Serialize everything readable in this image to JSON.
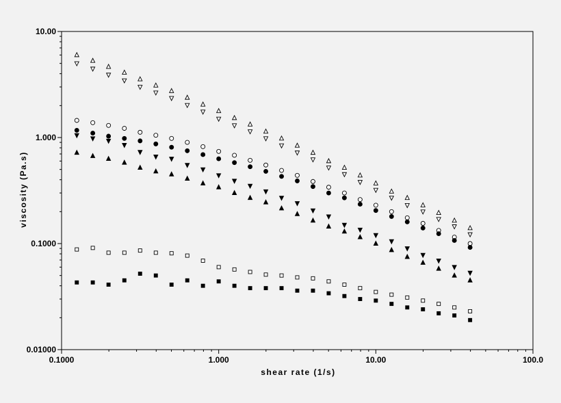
{
  "chart_data": {
    "type": "scatter",
    "title": "",
    "xlabel": "shear rate (1/s)",
    "ylabel": "viscosity (Pa.s)",
    "xscale": "log",
    "yscale": "log",
    "xlim": [
      0.1,
      100
    ],
    "ylim": [
      0.01,
      10
    ],
    "xticks": [
      "0.1000",
      "1.000",
      "10.00",
      "100.0"
    ],
    "yticks": [
      "0.01000",
      "0.1000",
      "1.000",
      "10.00"
    ],
    "grid": false,
    "legend": "none",
    "x": [
      0.125,
      0.158,
      0.199,
      0.251,
      0.316,
      0.398,
      0.501,
      0.631,
      0.794,
      1.0,
      1.259,
      1.585,
      1.995,
      2.512,
      3.162,
      3.981,
      5.012,
      6.31,
      7.943,
      10.0,
      12.59,
      15.85,
      19.95,
      25.12,
      31.62,
      39.81
    ],
    "series": [
      {
        "marker": "triangle-up-open",
        "values": [
          6.0,
          5.3,
          4.65,
          4.1,
          3.55,
          3.1,
          2.75,
          2.38,
          2.05,
          1.78,
          1.53,
          1.33,
          1.14,
          0.98,
          0.84,
          0.72,
          0.6,
          0.52,
          0.44,
          0.37,
          0.31,
          0.27,
          0.23,
          0.195,
          0.165,
          0.14
        ]
      },
      {
        "marker": "triangle-down-open",
        "values": [
          5.0,
          4.45,
          3.9,
          3.45,
          3.0,
          2.65,
          2.35,
          2.02,
          1.75,
          1.5,
          1.3,
          1.14,
          0.98,
          0.84,
          0.72,
          0.62,
          0.52,
          0.45,
          0.38,
          0.32,
          0.27,
          0.23,
          0.2,
          0.17,
          0.145,
          0.122
        ]
      },
      {
        "marker": "circle-open",
        "values": [
          1.45,
          1.38,
          1.3,
          1.22,
          1.12,
          1.05,
          0.98,
          0.9,
          0.82,
          0.74,
          0.68,
          0.61,
          0.55,
          0.49,
          0.44,
          0.385,
          0.34,
          0.3,
          0.26,
          0.23,
          0.2,
          0.175,
          0.155,
          0.133,
          0.115,
          0.1
        ]
      },
      {
        "marker": "circle-filled",
        "values": [
          1.17,
          1.1,
          1.03,
          0.98,
          0.93,
          0.87,
          0.81,
          0.75,
          0.69,
          0.63,
          0.58,
          0.53,
          0.48,
          0.43,
          0.39,
          0.345,
          0.3,
          0.27,
          0.235,
          0.205,
          0.18,
          0.16,
          0.14,
          0.124,
          0.107,
          0.092
        ]
      },
      {
        "marker": "triangle-down-filled",
        "values": [
          1.05,
          0.98,
          0.93,
          0.85,
          0.73,
          0.66,
          0.63,
          0.55,
          0.5,
          0.44,
          0.39,
          0.35,
          0.31,
          0.27,
          0.24,
          0.205,
          0.18,
          0.15,
          0.135,
          0.12,
          0.105,
          0.09,
          0.078,
          0.069,
          0.06,
          0.053
        ]
      },
      {
        "marker": "triangle-up-filled",
        "values": [
          0.72,
          0.67,
          0.63,
          0.58,
          0.52,
          0.48,
          0.45,
          0.41,
          0.37,
          0.34,
          0.3,
          0.27,
          0.245,
          0.215,
          0.19,
          0.165,
          0.145,
          0.13,
          0.115,
          0.1,
          0.087,
          0.075,
          0.066,
          0.058,
          0.05,
          0.045
        ]
      },
      {
        "marker": "square-open",
        "values": [
          0.088,
          0.091,
          0.082,
          0.082,
          0.086,
          0.082,
          0.081,
          0.077,
          0.069,
          0.06,
          0.057,
          0.054,
          0.051,
          0.05,
          0.048,
          0.047,
          0.044,
          0.041,
          0.038,
          0.035,
          0.033,
          0.031,
          0.029,
          0.027,
          0.025,
          0.023
        ]
      },
      {
        "marker": "square-filled",
        "values": [
          0.043,
          0.043,
          0.041,
          0.045,
          0.052,
          0.05,
          0.041,
          0.045,
          0.04,
          0.044,
          0.04,
          0.038,
          0.038,
          0.038,
          0.036,
          0.036,
          0.034,
          0.032,
          0.03,
          0.029,
          0.027,
          0.025,
          0.024,
          0.022,
          0.021,
          0.019
        ]
      }
    ]
  }
}
